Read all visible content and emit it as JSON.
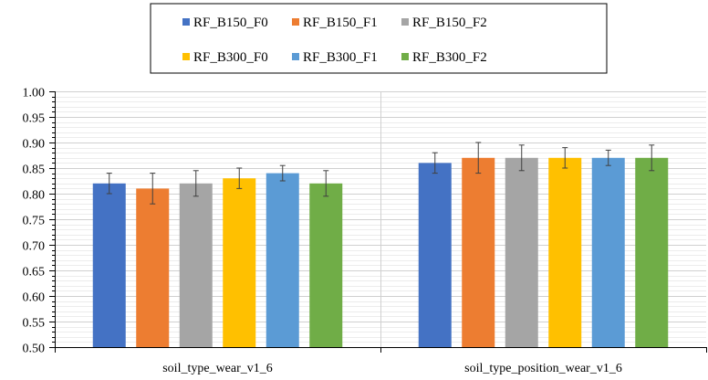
{
  "chart_data": {
    "type": "bar",
    "title": "",
    "xlabel": "",
    "ylabel": "",
    "categories": [
      "soil_type_wear_v1_6",
      "soil_type_position_wear_v1_6"
    ],
    "series": [
      {
        "name": "RF_B150_F0",
        "color": "#4472C4",
        "values": [
          0.82,
          0.86
        ],
        "errors": [
          0.02,
          0.02
        ]
      },
      {
        "name": "RF_B150_F1",
        "color": "#ED7D31",
        "values": [
          0.81,
          0.87
        ],
        "errors": [
          0.03,
          0.03
        ]
      },
      {
        "name": "RF_B150_F2",
        "color": "#A5A5A5",
        "values": [
          0.82,
          0.87
        ],
        "errors": [
          0.025,
          0.025
        ]
      },
      {
        "name": "RF_B300_F0",
        "color": "#FFC000",
        "values": [
          0.83,
          0.87
        ],
        "errors": [
          0.02,
          0.02
        ]
      },
      {
        "name": "RF_B300_F1",
        "color": "#5B9BD5",
        "values": [
          0.84,
          0.87
        ],
        "errors": [
          0.015,
          0.015
        ]
      },
      {
        "name": "RF_B300_F2",
        "color": "#70AD47",
        "values": [
          0.82,
          0.87
        ],
        "errors": [
          0.025,
          0.025
        ]
      }
    ],
    "ylim": [
      0.5,
      1.0
    ],
    "yticks": [
      "0.50",
      "0.55",
      "0.60",
      "0.65",
      "0.70",
      "0.75",
      "0.80",
      "0.85",
      "0.90",
      "0.95",
      "1.00"
    ],
    "grid": true,
    "error_bars": true,
    "legend_position": "top-center"
  }
}
